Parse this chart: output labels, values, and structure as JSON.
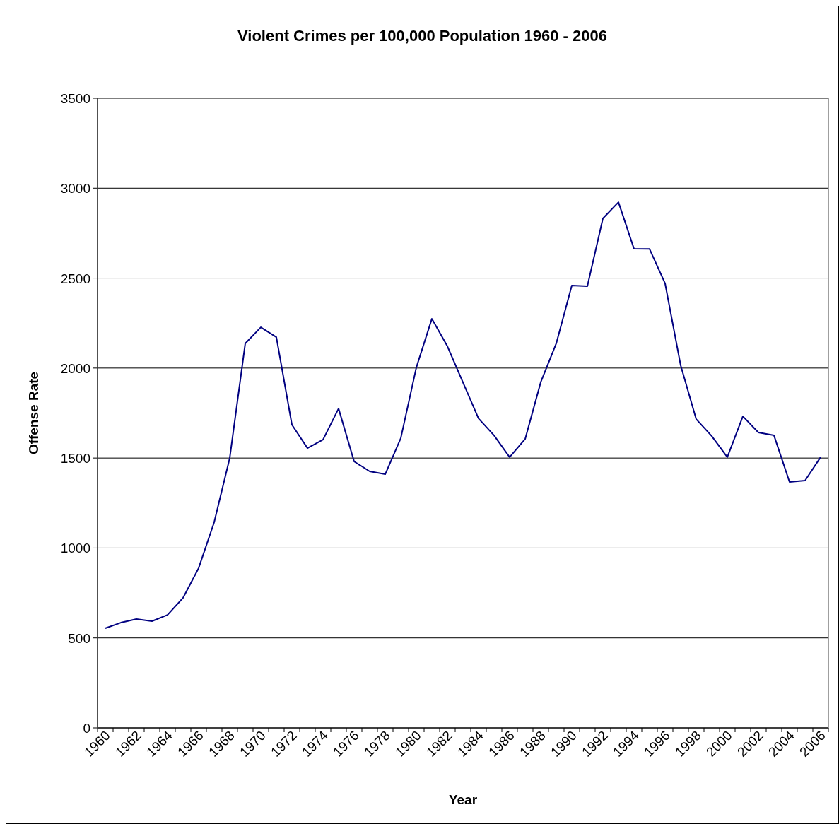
{
  "chart_data": {
    "type": "line",
    "title": "Violent Crimes per 100,000 Population 1960 - 2006",
    "xlabel": "Year",
    "ylabel": "Offense Rate",
    "categories": [
      "1960",
      null,
      "1962",
      null,
      "1964",
      null,
      "1966",
      null,
      "1968",
      null,
      "1970",
      null,
      "1972",
      null,
      "1974",
      null,
      "1976",
      null,
      "1978",
      null,
      "1980",
      null,
      "1982",
      null,
      "1984",
      null,
      "1986",
      null,
      "1988",
      null,
      "1990",
      null,
      "1992",
      null,
      "1994",
      null,
      "1996",
      null,
      "1998",
      null,
      "2000",
      null,
      "2002",
      null,
      "2004",
      null,
      "2006"
    ],
    "series": [
      {
        "color": "#000080",
        "values": [
          554,
          585,
          605,
          593,
          628,
          723,
          888,
          1143,
          1500,
          2137,
          2227,
          2172,
          1685,
          1555,
          1602,
          1775,
          1481,
          1426,
          1410,
          1610,
          2003,
          2274,
          2121,
          1920,
          1720,
          1626,
          1505,
          1606,
          1921,
          2137,
          2459,
          2455,
          2832,
          2922,
          2663,
          2662,
          2470,
          2015,
          1716,
          1622,
          1505,
          1732,
          1642,
          1626,
          1367,
          1375,
          1505
        ]
      }
    ],
    "ylim": [
      0,
      3500
    ],
    "yticks": [
      0,
      500,
      1000,
      1500,
      2000,
      2500,
      3000,
      3500
    ],
    "grid": "y",
    "marker": "none",
    "line_style": "solid"
  }
}
